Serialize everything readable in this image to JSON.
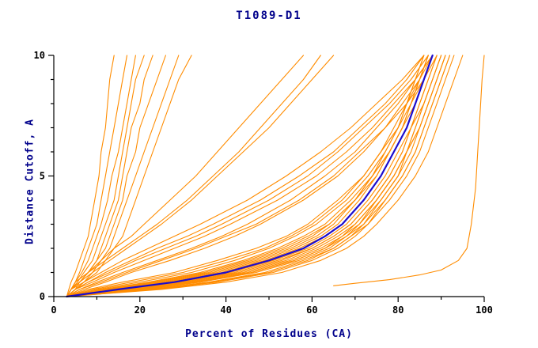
{
  "chart_data": {
    "type": "line",
    "title": "T1089-D1",
    "xlabel": "Percent of Residues (CA)",
    "ylabel": "Distance Cutoff, A",
    "xlim": [
      0,
      100
    ],
    "ylim": [
      0,
      10
    ],
    "xticks_major": [
      0,
      20,
      40,
      60,
      80,
      100
    ],
    "xticks_minor_step": 10,
    "yticks_major": [
      0,
      5,
      10
    ],
    "yticks_minor_step": 1,
    "grid": false,
    "legend": "none",
    "colors": {
      "model": "#ff8c00",
      "highlight": "#1c0ccd",
      "axis": "#000000",
      "text": "#00008b"
    },
    "cutoffs": [
      0,
      0.3,
      0.6,
      1,
      1.5,
      2,
      2.5,
      3,
      4,
      5,
      6,
      7,
      8,
      9,
      10
    ],
    "series": [
      {
        "name": "model-left-01",
        "x": [
          3,
          3.5,
          4,
          5,
          6,
          7,
          8,
          8.5,
          9.5,
          10.5,
          11,
          12,
          12.5,
          13,
          14
        ]
      },
      {
        "name": "model-left-02",
        "x": [
          3,
          4,
          5,
          6,
          7,
          8,
          9,
          10,
          11,
          12,
          13,
          14,
          15,
          16,
          17
        ]
      },
      {
        "name": "model-left-03",
        "x": [
          3,
          4,
          5,
          6.5,
          8,
          9,
          10,
          11,
          12.5,
          13.5,
          15,
          16,
          17,
          18,
          19
        ]
      },
      {
        "name": "model-left-04",
        "x": [
          3,
          4,
          5.5,
          7,
          9,
          10,
          11,
          12,
          14,
          15,
          16,
          17,
          18,
          19,
          21
        ]
      },
      {
        "name": "model-left-05",
        "x": [
          3,
          4,
          6,
          8,
          10,
          11,
          12,
          13,
          15,
          16,
          17,
          18,
          20,
          21,
          23
        ]
      },
      {
        "name": "model-left-06",
        "x": [
          3,
          5,
          6,
          8,
          10,
          12,
          13,
          14,
          16,
          17,
          19,
          20,
          22,
          24,
          26
        ]
      },
      {
        "name": "model-left-07",
        "x": [
          3,
          5,
          7,
          9,
          11,
          13,
          14,
          15,
          17,
          19,
          21,
          23,
          25,
          27,
          29
        ]
      },
      {
        "name": "model-left-08",
        "x": [
          3,
          5,
          7,
          10,
          12,
          14,
          16,
          17,
          19,
          21,
          23,
          25,
          27,
          29,
          32
        ]
      },
      {
        "name": "model-mid-01",
        "x": [
          3,
          4,
          6,
          9,
          13,
          17,
          21,
          25,
          32,
          38,
          44,
          50,
          55,
          60,
          65
        ]
      },
      {
        "name": "model-mid-02",
        "x": [
          3,
          4,
          6,
          8,
          11,
          14,
          18,
          21,
          27,
          33,
          38,
          43,
          48,
          53,
          58
        ]
      },
      {
        "name": "model-mid-03",
        "x": [
          3,
          4,
          5,
          8,
          12,
          16,
          20,
          24,
          31,
          37,
          43,
          48,
          53,
          58,
          62
        ]
      },
      {
        "name": "model-diag-01",
        "x": [
          3,
          6,
          10,
          16,
          24,
          32,
          39,
          45,
          55,
          63,
          70,
          75,
          80,
          84,
          88
        ]
      },
      {
        "name": "model-diag-02",
        "x": [
          3,
          5,
          8,
          13,
          19,
          26,
          33,
          39,
          50,
          59,
          66,
          72,
          78,
          83,
          87
        ]
      },
      {
        "name": "model-diag-03",
        "x": [
          3,
          7,
          12,
          18,
          27,
          35,
          42,
          48,
          58,
          66,
          72,
          77,
          82,
          86,
          89
        ]
      },
      {
        "name": "model-diag-04",
        "x": [
          3,
          5,
          9,
          14,
          21,
          28,
          35,
          41,
          52,
          61,
          68,
          74,
          79,
          84,
          88
        ]
      },
      {
        "name": "model-diag-05",
        "x": [
          3,
          6,
          11,
          17,
          25,
          33,
          40,
          47,
          57,
          65,
          71,
          77,
          81,
          85,
          88
        ]
      },
      {
        "name": "model-diag-06",
        "x": [
          3,
          4,
          7,
          11,
          16,
          22,
          28,
          34,
          45,
          54,
          62,
          69,
          75,
          81,
          86
        ]
      },
      {
        "name": "model-diag-07",
        "x": [
          3,
          5,
          8,
          12,
          18,
          24,
          31,
          37,
          48,
          57,
          65,
          71,
          77,
          82,
          86
        ]
      },
      {
        "name": "model-cluster-01",
        "x": [
          3,
          12,
          24,
          36,
          46,
          54,
          60,
          64,
          70,
          74,
          77,
          80,
          82,
          84,
          86
        ]
      },
      {
        "name": "model-cluster-02",
        "x": [
          3,
          17,
          30,
          43,
          53,
          60,
          65,
          69,
          74,
          78,
          81,
          83,
          85,
          87,
          89
        ]
      },
      {
        "name": "model-cluster-03",
        "x": [
          3,
          20,
          33,
          46,
          56,
          63,
          68,
          71,
          76,
          80,
          82,
          84,
          86,
          88,
          90
        ]
      },
      {
        "name": "model-cluster-04",
        "x": [
          3,
          10,
          20,
          32,
          42,
          50,
          56,
          61,
          68,
          73,
          77,
          80,
          83,
          85,
          87
        ]
      },
      {
        "name": "model-cluster-05",
        "x": [
          3,
          22,
          36,
          49,
          58,
          65,
          69,
          72,
          77,
          81,
          84,
          86,
          88,
          90,
          92
        ]
      },
      {
        "name": "model-cluster-06",
        "x": [
          3,
          14,
          26,
          38,
          48,
          56,
          62,
          66,
          71,
          75,
          78,
          81,
          83,
          85,
          87
        ]
      },
      {
        "name": "model-cluster-07",
        "x": [
          3,
          18,
          31,
          44,
          54,
          61,
          66,
          70,
          75,
          79,
          82,
          84,
          86,
          88,
          90
        ]
      },
      {
        "name": "model-cluster-08",
        "x": [
          3,
          8,
          16,
          28,
          38,
          47,
          54,
          59,
          66,
          72,
          76,
          79,
          82,
          84,
          86
        ]
      },
      {
        "name": "model-cluster-09",
        "x": [
          3,
          24,
          38,
          51,
          60,
          66,
          70,
          73,
          78,
          82,
          85,
          87,
          89,
          91,
          93
        ]
      },
      {
        "name": "model-cluster-10",
        "x": [
          3,
          16,
          29,
          41,
          51,
          59,
          64,
          68,
          73,
          77,
          80,
          83,
          85,
          87,
          89
        ]
      },
      {
        "name": "model-cluster-11",
        "x": [
          3,
          13,
          25,
          37,
          47,
          55,
          61,
          65,
          70,
          75,
          78,
          81,
          84,
          86,
          88
        ]
      },
      {
        "name": "model-cluster-12",
        "x": [
          3,
          19,
          32,
          45,
          55,
          62,
          67,
          70,
          75,
          79,
          82,
          85,
          87,
          89,
          91
        ]
      },
      {
        "name": "model-cluster-13",
        "x": [
          3,
          11,
          22,
          34,
          44,
          52,
          58,
          63,
          69,
          74,
          78,
          81,
          83,
          85,
          87
        ]
      },
      {
        "name": "model-cluster-14",
        "x": [
          3,
          21,
          34,
          47,
          57,
          64,
          68,
          72,
          76,
          80,
          83,
          85,
          87,
          89,
          91
        ]
      },
      {
        "name": "model-cluster-15",
        "x": [
          3,
          15,
          27,
          39,
          49,
          57,
          63,
          67,
          72,
          76,
          79,
          82,
          84,
          86,
          88
        ]
      },
      {
        "name": "model-cluster-16",
        "x": [
          3,
          9,
          18,
          30,
          40,
          49,
          55,
          60,
          67,
          72,
          76,
          80,
          82,
          85,
          87
        ]
      },
      {
        "name": "model-cluster-17",
        "x": [
          3,
          23,
          37,
          50,
          59,
          65,
          69,
          73,
          77,
          81,
          84,
          86,
          88,
          90,
          92
        ]
      },
      {
        "name": "model-cluster-18",
        "x": [
          3,
          17,
          30,
          42,
          52,
          60,
          65,
          69,
          74,
          78,
          81,
          83,
          86,
          88,
          90
        ]
      },
      {
        "name": "model-cluster-19",
        "x": [
          3,
          12,
          23,
          35,
          45,
          53,
          59,
          64,
          70,
          74,
          78,
          81,
          83,
          86,
          88
        ]
      },
      {
        "name": "model-cluster-20",
        "x": [
          3,
          20,
          34,
          46,
          56,
          63,
          67,
          71,
          75,
          79,
          82,
          85,
          87,
          89,
          91
        ]
      },
      {
        "name": "model-cluster-21",
        "x": [
          3,
          25,
          40,
          53,
          62,
          68,
          72,
          75,
          80,
          84,
          87,
          89,
          91,
          93,
          95
        ]
      },
      {
        "name": "model-right-outlier",
        "points": [
          [
            65,
            0.45
          ],
          [
            70,
            0.55
          ],
          [
            78,
            0.7
          ],
          [
            85,
            0.9
          ],
          [
            90,
            1.1
          ],
          [
            94,
            1.5
          ],
          [
            96,
            2.0
          ],
          [
            97,
            3.0
          ],
          [
            98,
            4.5
          ],
          [
            98.5,
            6.0
          ],
          [
            99,
            7.5
          ],
          [
            99.5,
            9.0
          ],
          [
            100,
            10
          ]
        ]
      },
      {
        "name": "best-model-highlight",
        "color": "#1c0ccd",
        "width": 2.2,
        "x": [
          3,
          15,
          28,
          40,
          50,
          58,
          63,
          67,
          72,
          76,
          79,
          82,
          84,
          86,
          88
        ]
      }
    ]
  }
}
